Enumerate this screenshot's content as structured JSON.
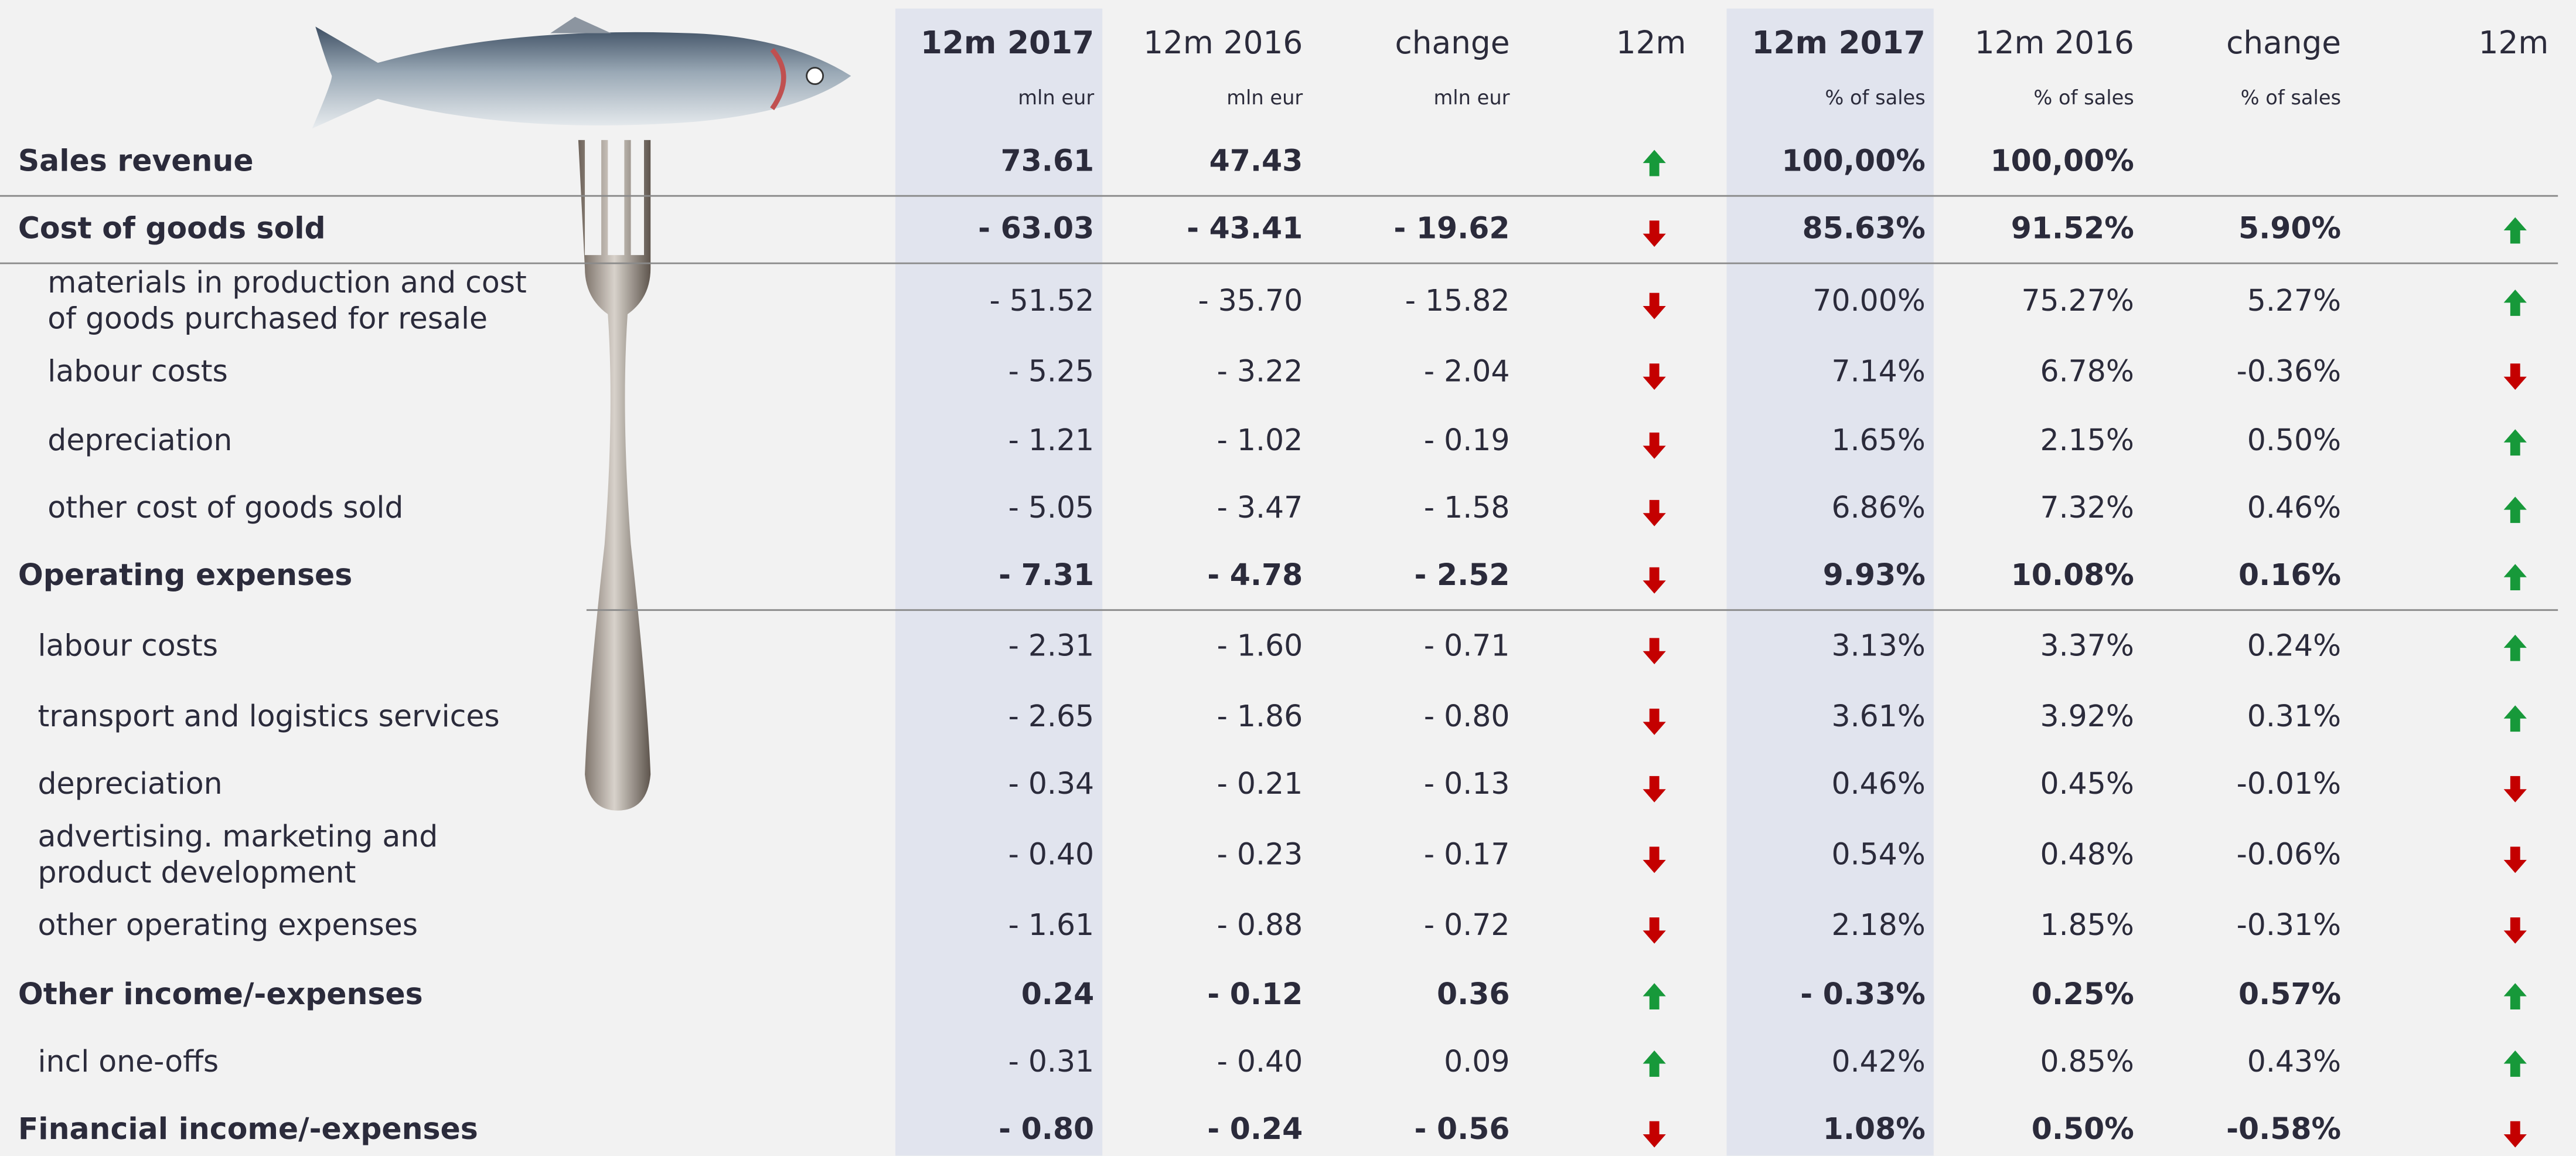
{
  "header": {
    "columns": [
      {
        "title": "12m 2017",
        "unit": "mln eur",
        "bold": true
      },
      {
        "title": "12m 2016",
        "unit": "mln eur"
      },
      {
        "title": "change",
        "unit": "mln eur"
      },
      {
        "title": "12m"
      },
      {
        "title": "12m 2017",
        "unit": "% of sales",
        "bold": true
      },
      {
        "title": "12m 2016",
        "unit": "% of sales"
      },
      {
        "title": "change",
        "unit": "% of sales"
      },
      {
        "title": "12m"
      }
    ]
  },
  "rows": [
    {
      "label": [
        "Sales revenue"
      ],
      "bold": true,
      "values": [
        "73.61",
        "47.43",
        null,
        "100,00%",
        "100,00%",
        null
      ],
      "trends": [
        "up",
        null
      ]
    },
    {
      "label": [
        "Cost of goods sold"
      ],
      "bold": true,
      "values": [
        "- 63.03",
        "- 43.41",
        "- 19.62",
        "85.63%",
        "91.52%",
        "5.90%"
      ],
      "trends": [
        "down",
        "up"
      ]
    },
    {
      "label": [
        "materials in production and cost",
        "of goods purchased for resale"
      ],
      "values": [
        "- 51.52",
        "- 35.70",
        "- 15.82",
        "70.00%",
        "75.27%",
        "5.27%"
      ],
      "trends": [
        "down",
        "up"
      ]
    },
    {
      "label": [
        "labour costs"
      ],
      "values": [
        "- 5.25",
        "- 3.22",
        "- 2.04",
        "7.14%",
        "6.78%",
        "-0.36%"
      ],
      "trends": [
        "down",
        "down"
      ]
    },
    {
      "label": [
        "depreciation"
      ],
      "values": [
        "- 1.21",
        "- 1.02",
        "- 0.19",
        "1.65%",
        "2.15%",
        "0.50%"
      ],
      "trends": [
        "down",
        "up"
      ]
    },
    {
      "label": [
        "other cost of goods sold"
      ],
      "values": [
        "- 5.05",
        "- 3.47",
        "- 1.58",
        "6.86%",
        "7.32%",
        "0.46%"
      ],
      "trends": [
        "down",
        "up"
      ]
    },
    {
      "label": [
        "Operating expenses"
      ],
      "bold": true,
      "values": [
        "- 7.31",
        "- 4.78",
        "- 2.52",
        "9.93%",
        "10.08%",
        "0.16%"
      ],
      "trends": [
        "down",
        "up"
      ]
    },
    {
      "label": [
        "labour costs"
      ],
      "values": [
        "- 2.31",
        "- 1.60",
        "- 0.71",
        "3.13%",
        "3.37%",
        "0.24%"
      ],
      "trends": [
        "down",
        "up"
      ]
    },
    {
      "label": [
        "transport and logistics services"
      ],
      "values": [
        "- 2.65",
        "- 1.86",
        "- 0.80",
        "3.61%",
        "3.92%",
        "0.31%"
      ],
      "trends": [
        "down",
        "up"
      ]
    },
    {
      "label": [
        "depreciation"
      ],
      "values": [
        "- 0.34",
        "- 0.21",
        "- 0.13",
        "0.46%",
        "0.45%",
        "-0.01%"
      ],
      "trends": [
        "down",
        "down"
      ]
    },
    {
      "label": [
        "advertising. marketing and",
        "product development"
      ],
      "values": [
        "- 0.40",
        "- 0.23",
        "- 0.17",
        "0.54%",
        "0.48%",
        "-0.06%"
      ],
      "trends": [
        "down",
        "down"
      ]
    },
    {
      "label": [
        "other operating expenses"
      ],
      "values": [
        "- 1.61",
        "- 0.88",
        "- 0.72",
        "2.18%",
        "1.85%",
        "-0.31%"
      ],
      "trends": [
        "down",
        "down"
      ]
    },
    {
      "label": [
        "Other income/-expenses"
      ],
      "bold": true,
      "values": [
        "0.24",
        "- 0.12",
        "0.36",
        "- 0.33%",
        "0.25%",
        "0.57%"
      ],
      "trends": [
        "up",
        "up"
      ]
    },
    {
      "label": [
        "incl one-offs"
      ],
      "values": [
        "- 0.31",
        "- 0.40",
        "0.09",
        "0.42%",
        "0.85%",
        "0.43%"
      ],
      "trends": [
        "up",
        "up"
      ]
    },
    {
      "label": [
        "Financial income/-expenses"
      ],
      "bold": true,
      "values": [
        "- 0.80",
        "- 0.24",
        "- 0.56",
        "1.08%",
        "0.50%",
        "-0.58%"
      ],
      "trends": [
        "down",
        "down"
      ]
    }
  ]
}
